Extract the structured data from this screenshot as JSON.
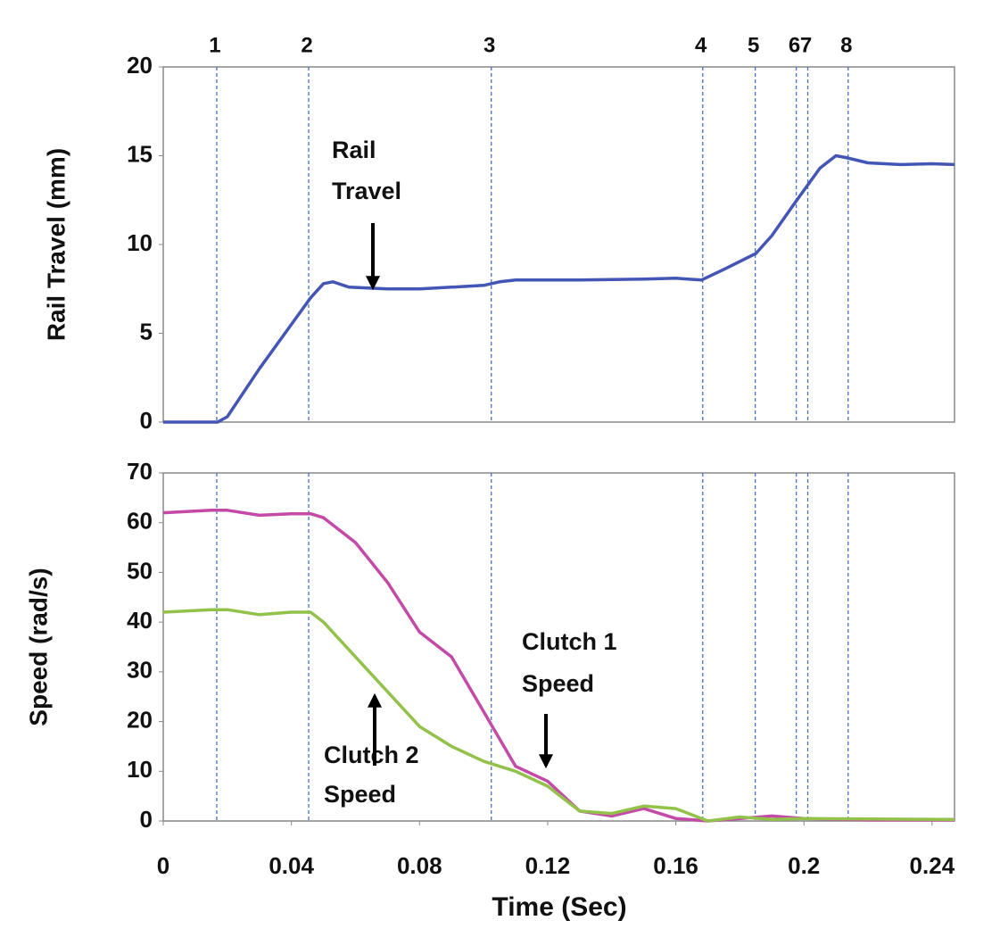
{
  "chart_data": [
    {
      "type": "line",
      "ylabel": "Rail Travel (mm)",
      "xlim": [
        0,
        0.247
      ],
      "ylim": [
        0,
        20
      ],
      "yticks": [
        0,
        5,
        10,
        15,
        20
      ],
      "events": {
        "x": [
          0.0167,
          0.0454,
          0.1024,
          0.1684,
          0.1848,
          0.1976,
          0.2012,
          0.2138
        ],
        "labels": [
          "1",
          "2",
          "3",
          "4",
          "5",
          "6",
          "7",
          "8"
        ],
        "color": "#4472c4"
      },
      "series": [
        {
          "color": "#4355b5",
          "x": [
            0,
            0.017,
            0.02,
            0.03,
            0.04,
            0.046,
            0.05,
            0.053,
            0.058,
            0.07,
            0.08,
            0.09,
            0.1,
            0.105,
            0.11,
            0.13,
            0.15,
            0.16,
            0.168,
            0.175,
            0.185,
            0.19,
            0.197,
            0.205,
            0.21,
            0.213,
            0.22,
            0.23,
            0.24,
            0.247
          ],
          "values": [
            0,
            0,
            0.3,
            3,
            5.5,
            7,
            7.8,
            7.9,
            7.6,
            7.5,
            7.5,
            7.6,
            7.7,
            7.9,
            8,
            8,
            8.05,
            8.1,
            8,
            8.6,
            9.5,
            10.5,
            12.3,
            14.3,
            15,
            14.9,
            14.6,
            14.5,
            14.55,
            14.5
          ]
        }
      ],
      "annotations": [
        {
          "text": [
            "Rail",
            "Travel"
          ]
        }
      ]
    },
    {
      "type": "line",
      "ylabel": "Speed (rad/s)",
      "xlabel": "Time (Sec)",
      "xlim": [
        0,
        0.247
      ],
      "xticks": [
        0,
        0.04,
        0.08,
        0.12,
        0.16,
        0.2,
        0.24
      ],
      "ylim": [
        0,
        70
      ],
      "yticks": [
        0,
        10,
        20,
        30,
        40,
        50,
        60,
        70
      ],
      "series": [
        {
          "color": "#c44aa8",
          "x": [
            0,
            0.015,
            0.02,
            0.03,
            0.04,
            0.046,
            0.05,
            0.06,
            0.07,
            0.08,
            0.09,
            0.1,
            0.11,
            0.12,
            0.13,
            0.14,
            0.15,
            0.16,
            0.17,
            0.18,
            0.19,
            0.2,
            0.22,
            0.247
          ],
          "values": [
            62,
            62.5,
            62.5,
            61.5,
            61.8,
            61.8,
            61,
            56,
            48,
            38,
            33,
            22,
            11,
            8,
            2,
            1,
            2.5,
            0.5,
            0,
            0.5,
            1,
            0.5,
            0.2,
            0.2
          ]
        },
        {
          "color": "#92c24a",
          "x": [
            0,
            0.015,
            0.02,
            0.03,
            0.04,
            0.046,
            0.05,
            0.06,
            0.07,
            0.08,
            0.09,
            0.1,
            0.11,
            0.12,
            0.13,
            0.14,
            0.15,
            0.16,
            0.17,
            0.18,
            0.19,
            0.2,
            0.247
          ],
          "values": [
            42,
            42.5,
            42.5,
            41.5,
            42,
            42,
            40,
            33,
            26,
            19,
            15,
            12,
            10,
            7,
            2,
            1.5,
            3,
            2.5,
            0,
            0.8,
            0.3,
            0.5,
            0.3
          ]
        }
      ],
      "annotations": [
        {
          "text": [
            "Clutch 1",
            "Speed"
          ]
        },
        {
          "text": [
            "Clutch 2",
            "Speed"
          ]
        }
      ]
    }
  ]
}
